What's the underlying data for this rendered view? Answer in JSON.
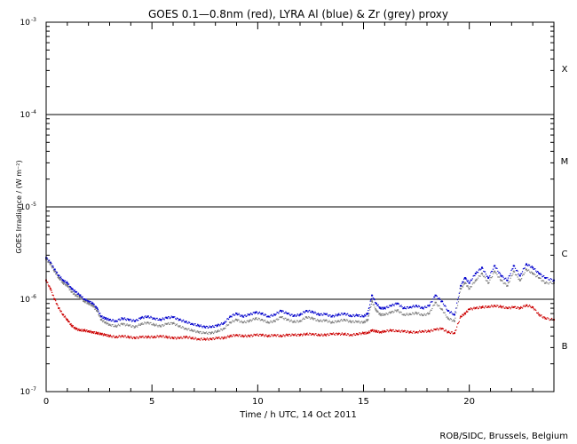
{
  "chart_data": {
    "type": "scatter",
    "title": "GOES 0.1—0.8nm (red), LYRA Al (blue) & Zr (grey) proxy",
    "xlabel": "Time / h UTC, 14 Oct 2011",
    "ylabel": "GOES Irradiance / (W m⁻²)",
    "xlim": [
      0,
      24
    ],
    "ylim": [
      1e-07,
      0.001
    ],
    "yscale": "log",
    "x_ticks": [
      0,
      5,
      10,
      15,
      20
    ],
    "y_ticks": [
      {
        "value": 1e-07,
        "base": "10",
        "exp": "-7"
      },
      {
        "value": 1e-06,
        "base": "10",
        "exp": "-6"
      },
      {
        "value": 1e-05,
        "base": "10",
        "exp": "-5"
      },
      {
        "value": 0.0001,
        "base": "10",
        "exp": "-4"
      },
      {
        "value": 0.001,
        "base": "10",
        "exp": "-3"
      }
    ],
    "flare_class_lines": [
      1e-06,
      1e-05,
      0.0001
    ],
    "flare_classes": [
      {
        "label": "X",
        "value": 0.000316
      },
      {
        "label": "M",
        "value": 3.16e-05
      },
      {
        "label": "C",
        "value": 3.16e-06
      },
      {
        "label": "B",
        "value": 3.16e-07
      }
    ],
    "series": [
      {
        "color": "#cc0000",
        "x": [
          0.0,
          0.2,
          0.4,
          0.6,
          0.8,
          1.0,
          1.2,
          1.4,
          1.6,
          1.8,
          2.0,
          2.2,
          2.4,
          2.6,
          2.8,
          3.0,
          3.3,
          3.6,
          3.9,
          4.2,
          4.5,
          4.8,
          5.1,
          5.4,
          5.7,
          6.0,
          6.3,
          6.6,
          6.9,
          7.2,
          7.5,
          7.8,
          8.1,
          8.4,
          8.7,
          9.0,
          9.3,
          9.6,
          9.9,
          10.2,
          10.5,
          10.8,
          11.1,
          11.4,
          11.7,
          12.0,
          12.3,
          12.6,
          12.9,
          13.2,
          13.5,
          13.8,
          14.1,
          14.4,
          14.7,
          15.0,
          15.2,
          15.4,
          15.6,
          15.8,
          16.0,
          16.3,
          16.6,
          16.9,
          17.2,
          17.5,
          17.8,
          18.1,
          18.4,
          18.7,
          19.0,
          19.3,
          19.6,
          19.8,
          20.0,
          20.3,
          20.6,
          20.9,
          21.2,
          21.5,
          21.8,
          22.1,
          22.4,
          22.7,
          23.0,
          23.3,
          23.6,
          24.0
        ],
        "y": [
          1.6e-06,
          1.3e-06,
          1e-06,
          8e-07,
          6.8e-07,
          6e-07,
          5.2e-07,
          4.8e-07,
          4.6e-07,
          4.6e-07,
          4.5e-07,
          4.4e-07,
          4.3e-07,
          4.2e-07,
          4.1e-07,
          4e-07,
          3.9e-07,
          4e-07,
          3.9e-07,
          3.8e-07,
          3.9e-07,
          3.9e-07,
          3.9e-07,
          4e-07,
          3.9e-07,
          3.8e-07,
          3.8e-07,
          3.9e-07,
          3.8e-07,
          3.7e-07,
          3.7e-07,
          3.7e-07,
          3.8e-07,
          3.8e-07,
          4e-07,
          4.1e-07,
          4e-07,
          4e-07,
          4.1e-07,
          4.1e-07,
          4e-07,
          4.1e-07,
          4e-07,
          4.1e-07,
          4.1e-07,
          4.1e-07,
          4.2e-07,
          4.2e-07,
          4.1e-07,
          4.1e-07,
          4.2e-07,
          4.2e-07,
          4.2e-07,
          4.1e-07,
          4.2e-07,
          4.3e-07,
          4.3e-07,
          4.6e-07,
          4.5e-07,
          4.4e-07,
          4.5e-07,
          4.6e-07,
          4.5e-07,
          4.5e-07,
          4.4e-07,
          4.4e-07,
          4.5e-07,
          4.5e-07,
          4.7e-07,
          4.8e-07,
          4.4e-07,
          4.3e-07,
          6.5e-07,
          7e-07,
          7.8e-07,
          8e-07,
          8.2e-07,
          8.3e-07,
          8.5e-07,
          8.3e-07,
          8e-07,
          8.2e-07,
          8e-07,
          8.6e-07,
          8.2e-07,
          6.8e-07,
          6.2e-07,
          6e-07
        ]
      },
      {
        "color": "#0000cc",
        "x": [
          0.0,
          0.2,
          0.4,
          0.6,
          0.8,
          1.0,
          1.2,
          1.4,
          1.6,
          1.8,
          2.0,
          2.2,
          2.4,
          2.6,
          2.8,
          3.0,
          3.3,
          3.6,
          3.9,
          4.2,
          4.5,
          4.8,
          5.1,
          5.4,
          5.7,
          6.0,
          6.3,
          6.6,
          6.9,
          7.2,
          7.5,
          7.8,
          8.1,
          8.4,
          8.7,
          9.0,
          9.3,
          9.6,
          9.9,
          10.2,
          10.5,
          10.8,
          11.1,
          11.4,
          11.7,
          12.0,
          12.3,
          12.6,
          12.9,
          13.2,
          13.5,
          13.8,
          14.1,
          14.4,
          14.7,
          15.0,
          15.2,
          15.4,
          15.6,
          15.8,
          16.0,
          16.3,
          16.6,
          16.9,
          17.2,
          17.5,
          17.8,
          18.1,
          18.4,
          18.7,
          19.0,
          19.3,
          19.6,
          19.8,
          20.0,
          20.3,
          20.6,
          20.9,
          21.2,
          21.5,
          21.8,
          22.1,
          22.4,
          22.7,
          23.0,
          23.3,
          23.6,
          24.0
        ],
        "y": [
          2.8e-06,
          2.5e-06,
          2.1e-06,
          1.8e-06,
          1.6e-06,
          1.5e-06,
          1.3e-06,
          1.2e-06,
          1.1e-06,
          1e-06,
          9.5e-07,
          9e-07,
          8e-07,
          6.5e-07,
          6.2e-07,
          6e-07,
          5.8e-07,
          6.2e-07,
          6e-07,
          5.8e-07,
          6.3e-07,
          6.5e-07,
          6.2e-07,
          6e-07,
          6.3e-07,
          6.4e-07,
          6e-07,
          5.7e-07,
          5.4e-07,
          5.2e-07,
          5e-07,
          5e-07,
          5.2e-07,
          5.5e-07,
          6.5e-07,
          7e-07,
          6.5e-07,
          6.8e-07,
          7.2e-07,
          7e-07,
          6.5e-07,
          6.8e-07,
          7.5e-07,
          7e-07,
          6.6e-07,
          6.8e-07,
          7.5e-07,
          7.3e-07,
          6.8e-07,
          6.9e-07,
          6.5e-07,
          6.8e-07,
          7e-07,
          6.6e-07,
          6.7e-07,
          6.5e-07,
          7e-07,
          1.1e-06,
          9e-07,
          8e-07,
          8e-07,
          8.5e-07,
          9e-07,
          8e-07,
          8.2e-07,
          8.5e-07,
          8e-07,
          8.5e-07,
          1.1e-06,
          9.5e-07,
          7.5e-07,
          6.8e-07,
          1.4e-06,
          1.7e-06,
          1.5e-06,
          1.9e-06,
          2.2e-06,
          1.7e-06,
          2.3e-06,
          1.8e-06,
          1.6e-06,
          2.3e-06,
          1.8e-06,
          2.4e-06,
          2.2e-06,
          1.9e-06,
          1.7e-06,
          1.6e-06
        ]
      },
      {
        "color": "#808080",
        "x": [
          0.0,
          0.2,
          0.4,
          0.6,
          0.8,
          1.0,
          1.2,
          1.4,
          1.6,
          1.8,
          2.0,
          2.2,
          2.4,
          2.6,
          2.8,
          3.0,
          3.3,
          3.6,
          3.9,
          4.2,
          4.5,
          4.8,
          5.1,
          5.4,
          5.7,
          6.0,
          6.3,
          6.6,
          6.9,
          7.2,
          7.5,
          7.8,
          8.1,
          8.4,
          8.7,
          9.0,
          9.3,
          9.6,
          9.9,
          10.2,
          10.5,
          10.8,
          11.1,
          11.4,
          11.7,
          12.0,
          12.3,
          12.6,
          12.9,
          13.2,
          13.5,
          13.8,
          14.1,
          14.4,
          14.7,
          15.0,
          15.2,
          15.4,
          15.6,
          15.8,
          16.0,
          16.3,
          16.6,
          16.9,
          17.2,
          17.5,
          17.8,
          18.1,
          18.4,
          18.7,
          19.0,
          19.3,
          19.6,
          19.8,
          20.0,
          20.3,
          20.6,
          20.9,
          21.2,
          21.5,
          21.8,
          22.1,
          22.4,
          22.7,
          23.0,
          23.3,
          23.6,
          24.0
        ],
        "y": [
          2.7e-06,
          2.4e-06,
          2e-06,
          1.7e-06,
          1.5e-06,
          1.4e-06,
          1.2e-06,
          1.1e-06,
          1.05e-06,
          9.5e-07,
          9e-07,
          8.5e-07,
          7.5e-07,
          6e-07,
          5.6e-07,
          5.3e-07,
          5.1e-07,
          5.4e-07,
          5.2e-07,
          5e-07,
          5.4e-07,
          5.6e-07,
          5.3e-07,
          5.1e-07,
          5.4e-07,
          5.5e-07,
          5.1e-07,
          4.8e-07,
          4.6e-07,
          4.4e-07,
          4.3e-07,
          4.3e-07,
          4.5e-07,
          4.8e-07,
          5.6e-07,
          6e-07,
          5.6e-07,
          5.8e-07,
          6.2e-07,
          6e-07,
          5.6e-07,
          5.8e-07,
          6.4e-07,
          6e-07,
          5.7e-07,
          5.8e-07,
          6.4e-07,
          6.2e-07,
          5.8e-07,
          5.9e-07,
          5.6e-07,
          5.8e-07,
          6e-07,
          5.7e-07,
          5.7e-07,
          5.6e-07,
          6e-07,
          9.5e-07,
          7.6e-07,
          6.8e-07,
          6.8e-07,
          7.2e-07,
          7.6e-07,
          6.8e-07,
          6.9e-07,
          7.1e-07,
          6.7e-07,
          7e-07,
          9.2e-07,
          7.8e-07,
          6.2e-07,
          5.8e-07,
          1.3e-06,
          1.5e-06,
          1.3e-06,
          1.6e-06,
          1.9e-06,
          1.5e-06,
          2e-06,
          1.6e-06,
          1.4e-06,
          2e-06,
          1.6e-06,
          2.1e-06,
          1.9e-06,
          1.7e-06,
          1.5e-06,
          1.5e-06
        ]
      }
    ]
  },
  "footer": {
    "credit": "ROB/SIDC, Brussels, Belgium"
  }
}
